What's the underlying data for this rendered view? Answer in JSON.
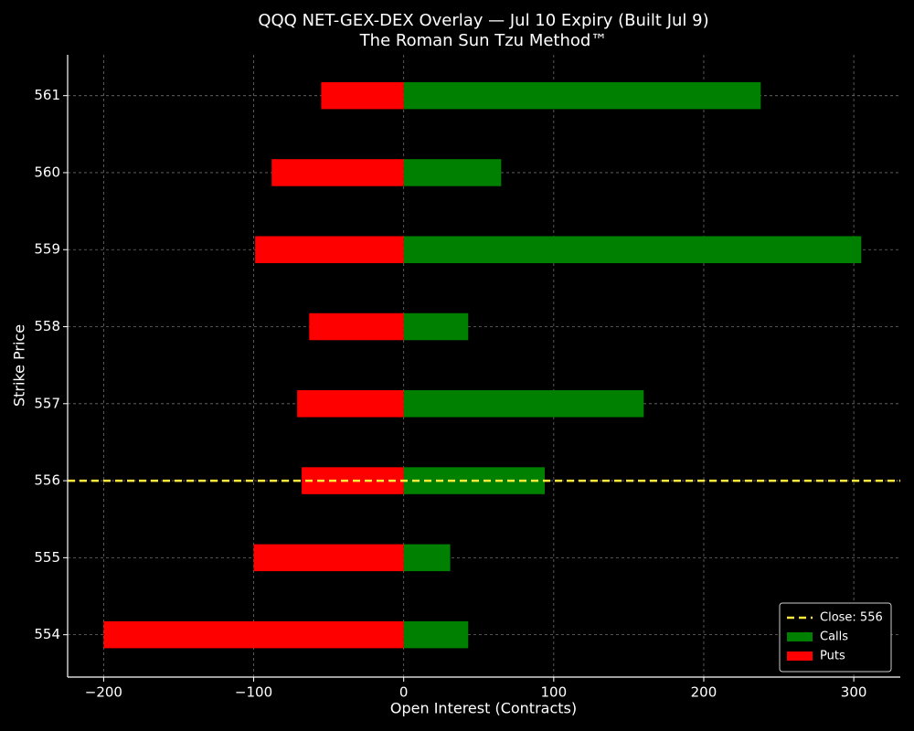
{
  "chart_data": {
    "type": "bar",
    "orientation": "horizontal",
    "title": "QQQ NET-GEX-DEX Overlay — Jul 10 Expiry (Built Jul 9)",
    "subtitle": "The Roman Sun Tzu Method™",
    "x_label": "Open Interest (Contracts)",
    "y_label": "Strike Price",
    "categories": [
      554,
      555,
      556,
      557,
      558,
      559,
      560,
      561
    ],
    "series": [
      {
        "name": "Calls",
        "color": "#008000",
        "values": [
          43,
          31,
          94,
          160,
          43,
          305,
          65,
          238
        ]
      },
      {
        "name": "Puts",
        "color": "#ff0000",
        "values": [
          -200,
          -100,
          -68,
          -71,
          -63,
          -99,
          -88,
          -55
        ]
      }
    ],
    "close": {
      "value": 556,
      "label": "Close: 556",
      "color": "#ffeb3b"
    },
    "xlim": [
      -224,
      331
    ],
    "ylim": [
      553.45,
      561.53
    ],
    "xticks": [
      {
        "value": -200,
        "label": "−200"
      },
      {
        "value": -100,
        "label": "−100"
      },
      0,
      100,
      200,
      300
    ],
    "yticks": [
      554,
      555,
      556,
      557,
      558,
      559,
      560,
      561
    ],
    "grid": true,
    "legend": "lower right"
  }
}
